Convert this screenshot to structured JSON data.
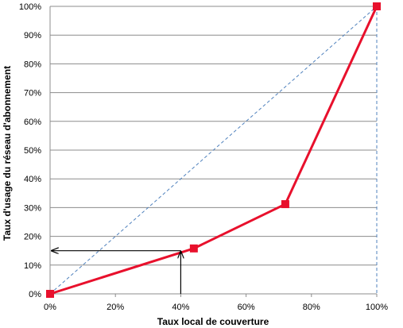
{
  "chart_data": {
    "type": "line",
    "xlabel": "Taux local de couverture",
    "ylabel": "Taux d'usage du réseau d'abonnement",
    "xlim": [
      0,
      1
    ],
    "ylim": [
      0,
      1
    ],
    "x_ticks": [
      "0%",
      "20%",
      "40%",
      "60%",
      "80%",
      "100%"
    ],
    "y_ticks": [
      "0%",
      "10%",
      "20%",
      "30%",
      "40%",
      "50%",
      "60%",
      "70%",
      "80%",
      "90%",
      "100%"
    ],
    "grid": "horizontal",
    "series": [
      {
        "style": "solid-line-with-square-markers",
        "color": "#e8102c",
        "points": [
          {
            "x": 0.0,
            "y": 0.0
          },
          {
            "x": 0.44,
            "y": 0.158
          },
          {
            "x": 0.72,
            "y": 0.312
          },
          {
            "x": 1.0,
            "y": 1.0
          }
        ]
      },
      {
        "style": "dashed-reference-line",
        "color": "#4f81bd",
        "points": [
          {
            "x": 0.0,
            "y": 0.0
          },
          {
            "x": 1.0,
            "y": 1.0
          }
        ]
      }
    ],
    "annotations": [
      {
        "type": "arrow-up",
        "x": 0.4,
        "from_y": 0.0,
        "to_y": 0.15
      },
      {
        "type": "arrow-left",
        "y": 0.15,
        "from_x": 0.4,
        "to_x": 0.0
      }
    ],
    "colors": {
      "main_series": "#e8102c",
      "reference_line": "#4f81bd",
      "gridline": "#8c8c8c",
      "annotation_arrow": "#000000"
    }
  }
}
